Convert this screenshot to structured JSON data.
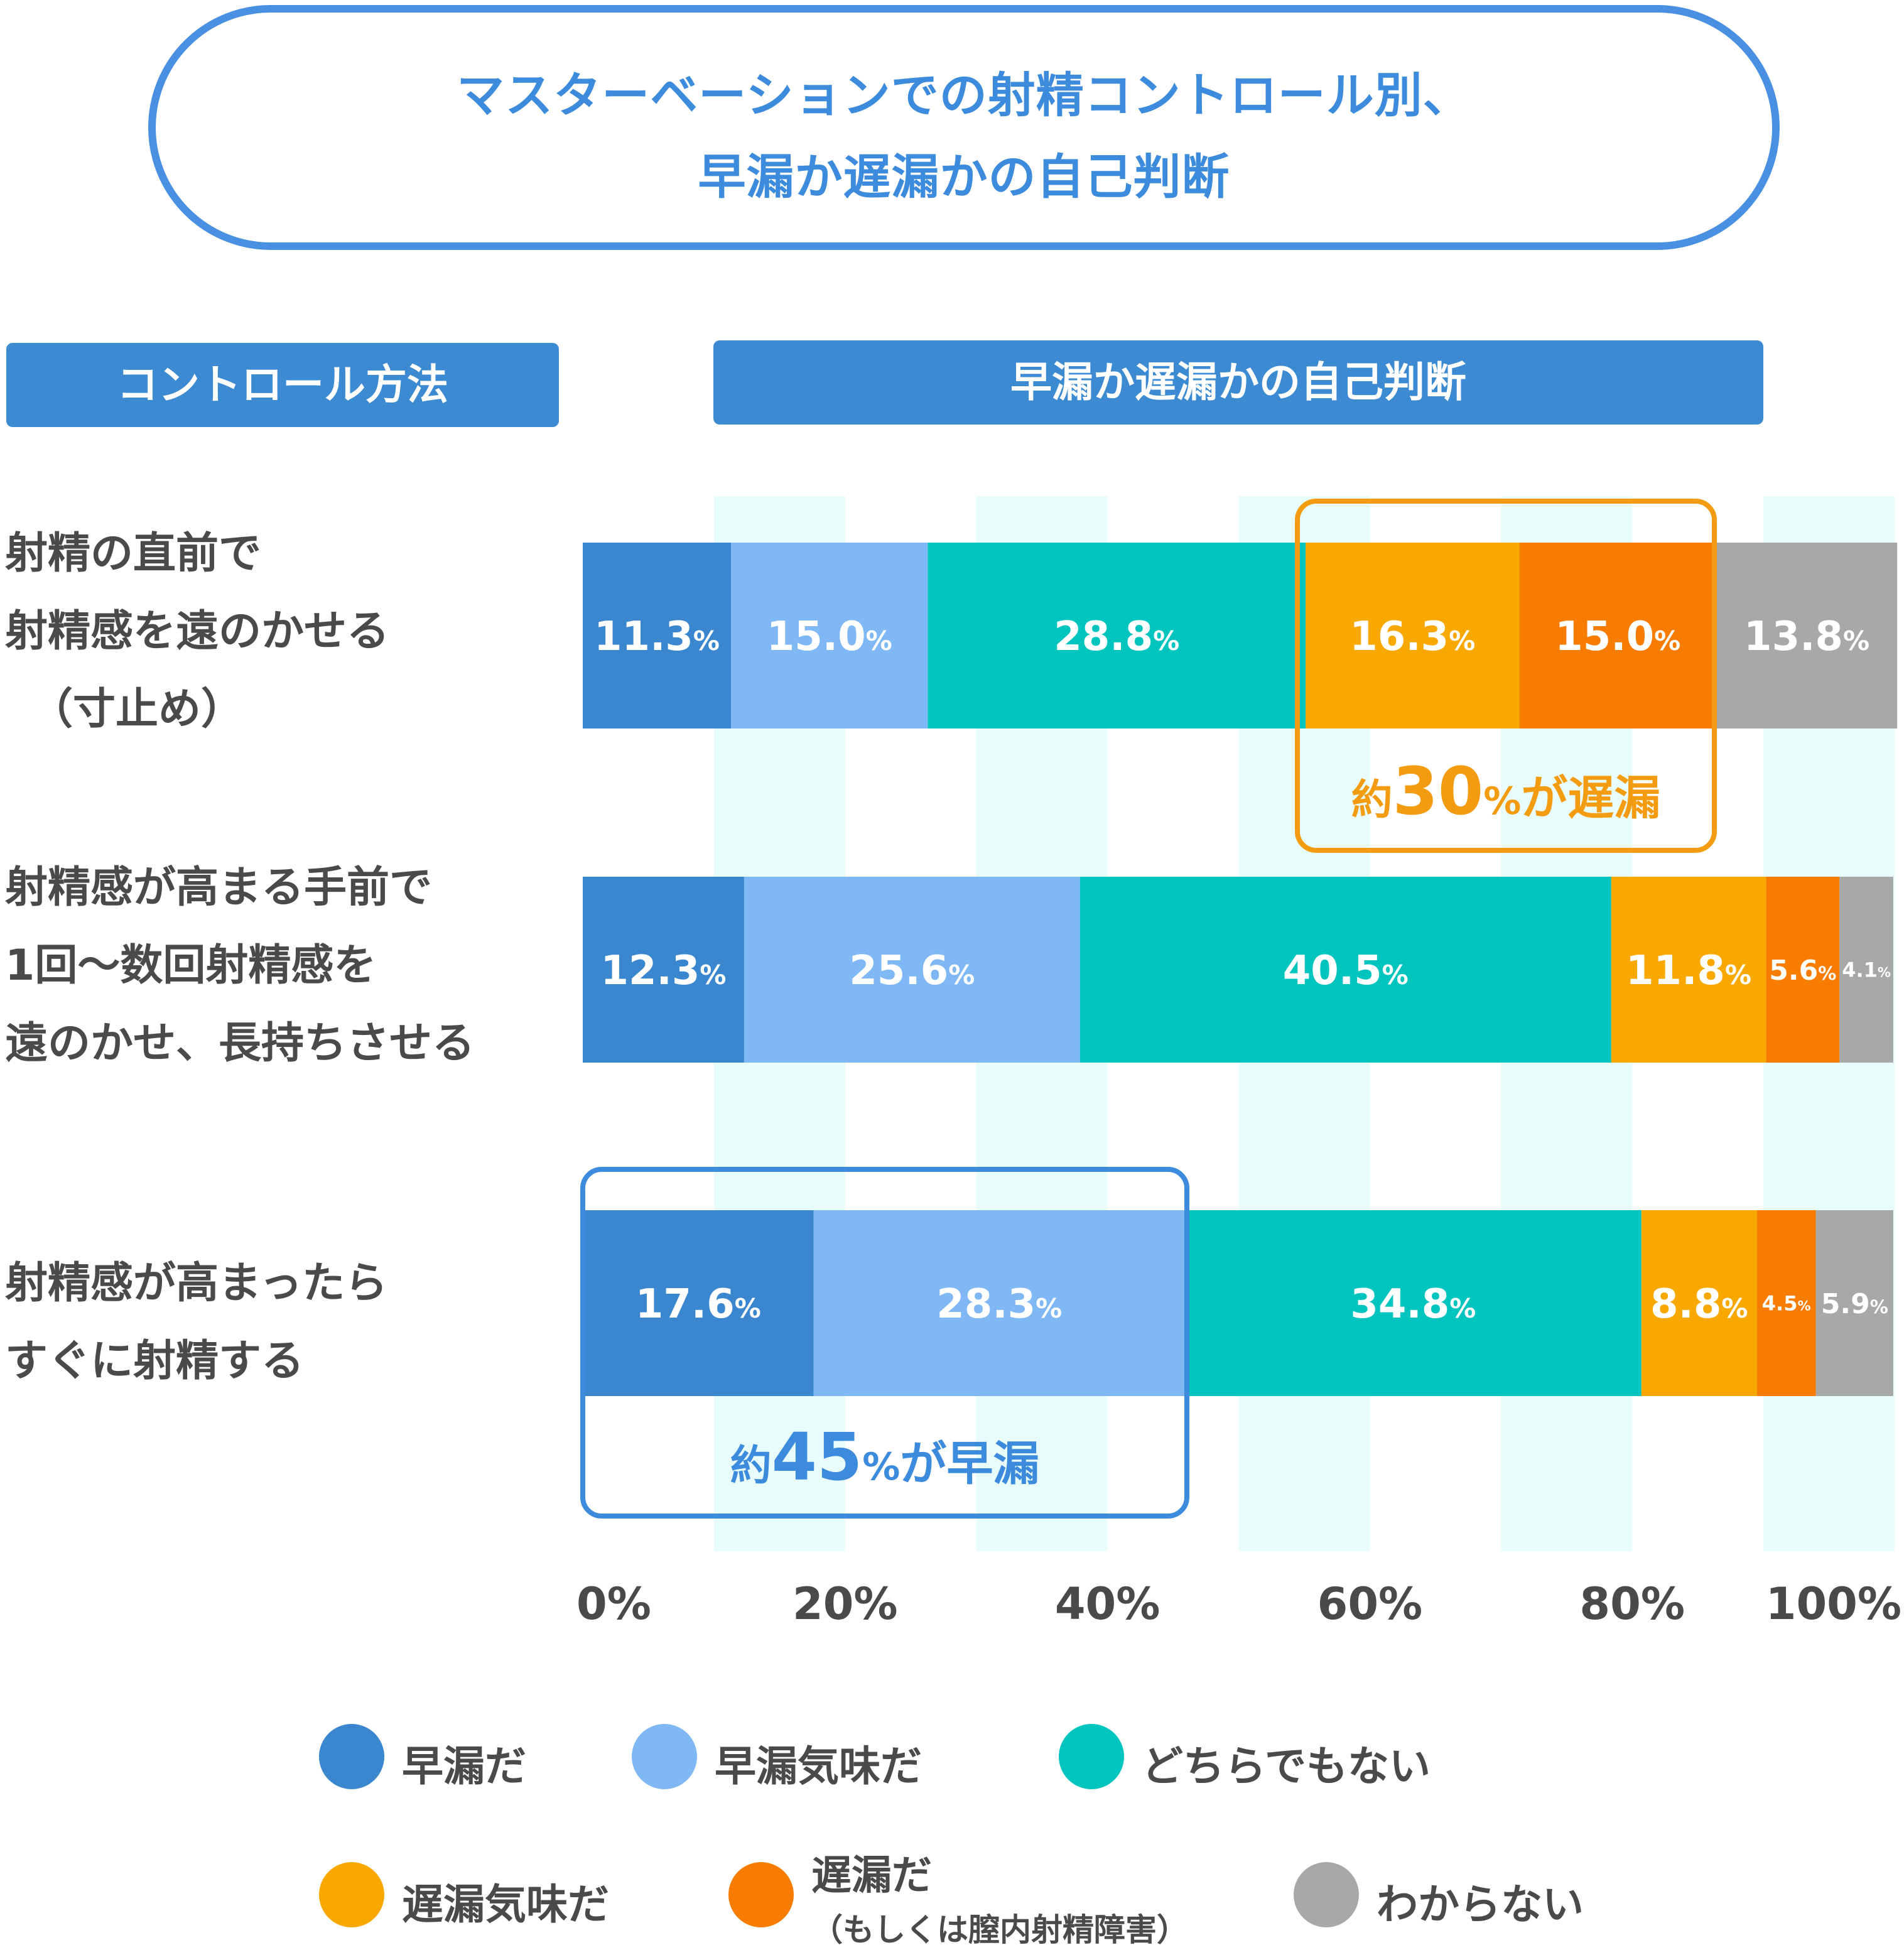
{
  "title": {
    "line1": "マスターベーションでの射精コントロール別、",
    "line2": "早漏か遅漏かの自己判断"
  },
  "headers": {
    "left": "コントロール方法",
    "right": "早漏か遅漏かの自己判断"
  },
  "rows": [
    {
      "label_lines": [
        "射精の直前で",
        "射精感を遠のかせる",
        "（寸止め）"
      ]
    },
    {
      "label_lines": [
        "射精感が高まる手前で",
        "1回〜数回射精感を",
        "遠のかせ、長持ちさせる"
      ]
    },
    {
      "label_lines": [
        "射精感が高まったら",
        "すぐに射精する"
      ]
    }
  ],
  "annotations": [
    {
      "prefix": "約",
      "number": "30",
      "percent": "%",
      "suffix": "が遅漏",
      "color": "#f39c12",
      "row": 0
    },
    {
      "prefix": "約",
      "number": "45",
      "percent": "%",
      "suffix": "が早漏",
      "color": "#3c8bdc",
      "row": 2
    }
  ],
  "chart_data": {
    "type": "bar",
    "orientation": "horizontal-stacked-100",
    "title": "マスターベーションでの射精コントロール別、早漏か遅漏かの自己判断",
    "categories": [
      "射精の直前で射精感を遠のかせる（寸止め）",
      "射精感が高まる手前で1回〜数回射精感を遠のかせ、長持ちさせる",
      "射精感が高まったらすぐに射精する"
    ],
    "xlim": [
      0,
      100
    ],
    "x_ticks": [
      "0%",
      "20%",
      "40%",
      "60%",
      "80%",
      "100%"
    ],
    "series": [
      {
        "name": "早漏だ",
        "color": "#3a87cf",
        "values": [
          11.3,
          12.3,
          17.6
        ],
        "labels": [
          "11.3",
          "12.3",
          "17.6"
        ]
      },
      {
        "name": "早漏気味だ",
        "color": "#7fb8f5",
        "values": [
          15.0,
          25.6,
          28.3
        ],
        "labels": [
          "15.0",
          "25.6",
          "28.3"
        ]
      },
      {
        "name": "どちらでもない",
        "color": "#00c4be",
        "values": [
          28.8,
          40.5,
          34.8
        ],
        "labels": [
          "28.8",
          "40.5",
          "34.8"
        ]
      },
      {
        "name": "遅漏気味だ",
        "color": "#f9a800",
        "values": [
          16.3,
          11.8,
          8.8
        ],
        "labels": [
          "16.3",
          "11.8",
          "8.8"
        ]
      },
      {
        "name": "遅漏だ",
        "name_sub": "（もしくは膣内射精障害）",
        "color": "#f77c00",
        "values": [
          15.0,
          5.6,
          4.5
        ],
        "labels": [
          "15.0",
          "5.6",
          "4.5"
        ]
      },
      {
        "name": "わからない",
        "color": "#a8a8a8",
        "values": [
          13.8,
          4.1,
          5.9
        ],
        "labels": [
          "13.8",
          "4.1",
          "5.9"
        ]
      }
    ],
    "percent_sign": "%",
    "grid_band_color": "#e8fcfb",
    "legend_placement": "bottom"
  }
}
